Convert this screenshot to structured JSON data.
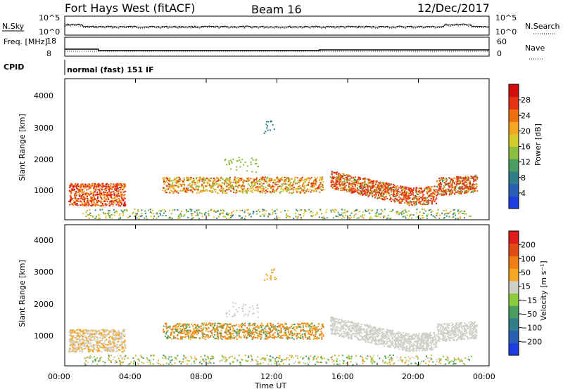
{
  "header": {
    "station": "Fort Hays West (fitACF)",
    "beam": "Beam 16",
    "date": "12/Dec/2017"
  },
  "colors": {
    "pwr": [
      "#1f3ce0",
      "#2a5fb4",
      "#2f7e89",
      "#4c9e60",
      "#8bbd3e",
      "#d4cc2a",
      "#f5a623",
      "#ee6f0f",
      "#e33214",
      "#d10f0f"
    ],
    "vel": [
      "#1f3ce0",
      "#2a5fb4",
      "#2f7e89",
      "#4c9e60",
      "#8bcd3e",
      "#cfcfc7",
      "#f5a623",
      "#ee7e14",
      "#e04c14",
      "#e01d1d"
    ]
  },
  "chart_data": [
    {
      "type": "line",
      "panel": "noise",
      "ylabel_left": "N.Sky",
      "ylabel_right": "N.Search",
      "yticks_left": [
        "10^5",
        "10^0"
      ],
      "yticks_right": [
        "10^5",
        "10^0"
      ],
      "series": [
        {
          "name": "N.Sky",
          "style": "solid"
        },
        {
          "name": "N.Search",
          "style": "dotted"
        }
      ]
    },
    {
      "type": "line",
      "panel": "frequency",
      "ylabel_left": "Freq. [MHz]",
      "ylabel_right": "Nave",
      "yticks_left": [
        "18",
        "8"
      ],
      "yticks_right": [
        "60",
        "0"
      ],
      "series": [
        {
          "name": "Nave",
          "style": "dotted"
        }
      ]
    },
    {
      "type": "text",
      "panel": "cpid",
      "label": "CPID",
      "value": "normal (fast) 151 IF"
    },
    {
      "type": "heatmap",
      "panel": "power",
      "ylabel": "Slant Range [km]",
      "yticks": [
        "4000",
        "3000",
        "2000",
        "1000"
      ],
      "ylim": [
        200,
        4600
      ],
      "xlim": [
        "00:00",
        "24:00"
      ],
      "colorbar_label": "Power [dB]",
      "colorbar_ticks": [
        "28",
        "24",
        "20",
        "16",
        "12",
        "8",
        "4"
      ],
      "colorbar_range": [
        0,
        30
      ]
    },
    {
      "type": "heatmap",
      "panel": "velocity",
      "ylabel": "Slant Range [km]",
      "yticks": [
        "4000",
        "3000",
        "2000",
        "1000"
      ],
      "ylim": [
        200,
        4600
      ],
      "xlim": [
        "00:00",
        "24:00"
      ],
      "colorbar_label": "Velocity [m s⁻¹]",
      "colorbar_ticks": [
        "200",
        "100",
        "50",
        "15",
        "−15",
        "−50",
        "−100",
        "−200"
      ],
      "colorbar_range": [
        -250,
        250
      ]
    }
  ],
  "xaxis": {
    "ticks": [
      "00:00",
      "04:00",
      "08:00",
      "12:00",
      "16:00",
      "20:00",
      "00:00"
    ],
    "label": "Time UT"
  }
}
